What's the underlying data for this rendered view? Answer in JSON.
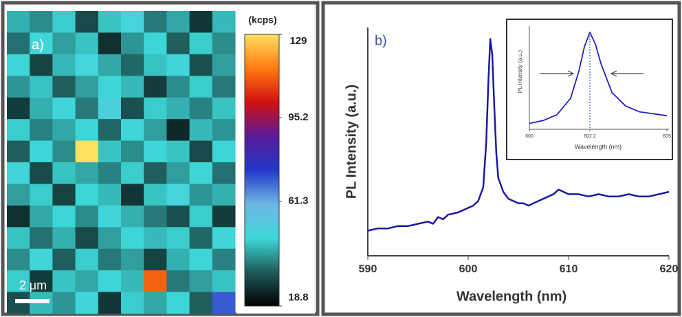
{
  "chart_data": [
    {
      "type": "heatmap",
      "label": "a)",
      "scale_bar_label": "2 μm",
      "colorbar_label": "(kcps)",
      "clim": [
        18.8,
        129
      ],
      "colorbar_ticks": [
        129,
        95.2,
        61.3,
        18.8
      ],
      "colormap": [
        "#000000",
        "#1f5a5a",
        "#3ed8d8",
        "#6fb6e6",
        "#2238c8",
        "#5a1a9a",
        "#d01010",
        "#ff7a10",
        "#ffe060"
      ],
      "values": [
        [
          42,
          38,
          45,
          30,
          44,
          48,
          36,
          41,
          27,
          43
        ],
        [
          35,
          47,
          40,
          44,
          26,
          39,
          46,
          33,
          45,
          38
        ],
        [
          46,
          29,
          43,
          48,
          41,
          34,
          44,
          47,
          31,
          40
        ],
        [
          39,
          44,
          33,
          40,
          46,
          43,
          28,
          38,
          45,
          36
        ],
        [
          28,
          42,
          47,
          36,
          50,
          31,
          45,
          42,
          37,
          44
        ],
        [
          45,
          37,
          41,
          46,
          34,
          47,
          40,
          25,
          43,
          39
        ],
        [
          33,
          46,
          38,
          129,
          44,
          38,
          47,
          44,
          30,
          46
        ],
        [
          47,
          30,
          44,
          41,
          37,
          45,
          33,
          40,
          46,
          35
        ],
        [
          40,
          45,
          29,
          46,
          43,
          27,
          44,
          48,
          39,
          42
        ],
        [
          26,
          41,
          46,
          38,
          47,
          42,
          36,
          31,
          45,
          28
        ],
        [
          44,
          35,
          42,
          30,
          40,
          46,
          43,
          45,
          34,
          47
        ],
        [
          38,
          47,
          33,
          45,
          36,
          40,
          29,
          42,
          46,
          37
        ],
        [
          45,
          28,
          44,
          41,
          46,
          43,
          112,
          36,
          40,
          44
        ],
        [
          31,
          43,
          39,
          47,
          27,
          45,
          41,
          46,
          33,
          70
        ]
      ]
    },
    {
      "type": "line",
      "label": "b)",
      "x_label": "Wavelength (nm)",
      "y_label": "PL Intensity (a.u.)",
      "xlim": [
        590,
        620
      ],
      "xticks": [
        590,
        600,
        610,
        620
      ],
      "ylim": [
        0,
        100
      ],
      "color": "#1a1aa0",
      "x": [
        590,
        591,
        592,
        593,
        594,
        595,
        596,
        596.5,
        597,
        597.5,
        598,
        599,
        600,
        600.5,
        601,
        601.5,
        601.8,
        602,
        602.2,
        602.4,
        602.6,
        602.8,
        603,
        603.5,
        604,
        604.5,
        605,
        605.5,
        606,
        607,
        608,
        608.5,
        609,
        609.5,
        610,
        611,
        612,
        613,
        614,
        615,
        616,
        617,
        618,
        619,
        620
      ],
      "values": [
        11,
        12,
        12,
        13,
        13,
        14,
        15,
        14,
        17,
        16,
        18,
        19,
        21,
        22,
        24,
        30,
        50,
        75,
        95,
        88,
        65,
        45,
        34,
        28,
        25,
        24,
        23,
        23,
        22,
        24,
        26,
        27,
        29,
        28,
        27,
        27,
        26,
        27,
        26,
        26,
        27,
        26,
        26,
        27,
        28
      ]
    },
    {
      "type": "line",
      "x_label": "Wavelength (nm)",
      "y_label": "PL Intensity (a.u.)",
      "xlim": [
        600,
        605
      ],
      "xticks": [
        600,
        602.2,
        605
      ],
      "ylim": [
        0,
        105
      ],
      "color": "#2020c0",
      "x": [
        600,
        600.5,
        601,
        601.5,
        601.8,
        602,
        602.2,
        602.4,
        602.6,
        603,
        603.5,
        604,
        604.5,
        605
      ],
      "values": [
        6,
        9,
        15,
        32,
        60,
        85,
        100,
        88,
        68,
        38,
        24,
        18,
        16,
        14
      ]
    }
  ]
}
